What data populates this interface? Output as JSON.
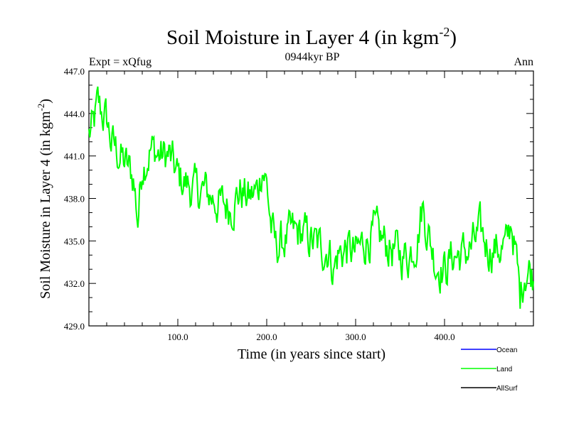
{
  "chart_data": {
    "type": "line",
    "title": "Soil Moisture in Layer 4 (in kgm",
    "title_sup": "-2",
    "title_close": ")",
    "subtitle": "0944kyr BP",
    "left_label": "Expt = xQfug",
    "right_label": "Ann",
    "xlabel": "Time (in years since start)",
    "ylabel": "Soil Moisture in Layer 4 (in kgm",
    "ylabel_sup": "-2",
    "ylabel_close": ")",
    "xlim": [
      0,
      500
    ],
    "ylim": [
      429,
      447
    ],
    "xticks": [
      100,
      200,
      300,
      400
    ],
    "xtick_labels": [
      "100.0",
      "200.0",
      "300.0",
      "400.0"
    ],
    "yticks": [
      429,
      432,
      435,
      438,
      441,
      444,
      447
    ],
    "ytick_labels": [
      "429.0",
      "432.0",
      "435.0",
      "438.0",
      "441.0",
      "444.0",
      "447.0"
    ],
    "legend": [
      {
        "name": "Ocean",
        "color": "#0000ff"
      },
      {
        "name": "Land",
        "color": "#00ff00"
      },
      {
        "name": "AllSurf",
        "color": "#000000"
      }
    ],
    "series": [
      {
        "name": "Land",
        "color": "#00ff00",
        "anchors_x": [
          0,
          5,
          10,
          15,
          20,
          25,
          30,
          40,
          50,
          55,
          60,
          70,
          80,
          90,
          100,
          110,
          120,
          130,
          140,
          150,
          160,
          170,
          180,
          190,
          195,
          200,
          205,
          210,
          220,
          230,
          240,
          250,
          260,
          270,
          275,
          280,
          290,
          300,
          310,
          320,
          330,
          340,
          350,
          360,
          370,
          375,
          380,
          390,
          400,
          410,
          420,
          430,
          440,
          450,
          460,
          470,
          475,
          480,
          485,
          490,
          495,
          500
        ],
        "anchors_y": [
          442.5,
          443.0,
          444.5,
          444.0,
          443.5,
          442.0,
          441.5,
          440.5,
          439.5,
          436.5,
          440.5,
          441.5,
          441.0,
          441.0,
          439.5,
          439.0,
          438.5,
          438.5,
          438.0,
          437.5,
          437.5,
          438.5,
          438.0,
          438.5,
          440.5,
          439.0,
          436.0,
          434.5,
          435.0,
          435.5,
          435.5,
          435.0,
          434.5,
          434.5,
          433.0,
          434.0,
          434.5,
          434.0,
          435.0,
          435.5,
          435.0,
          434.5,
          434.0,
          434.0,
          435.5,
          437.5,
          436.0,
          433.5,
          433.0,
          434.0,
          434.0,
          434.5,
          435.5,
          434.5,
          434.5,
          434.5,
          436.5,
          434.0,
          431.0,
          433.0,
          433.0,
          432.5
        ]
      }
    ]
  }
}
